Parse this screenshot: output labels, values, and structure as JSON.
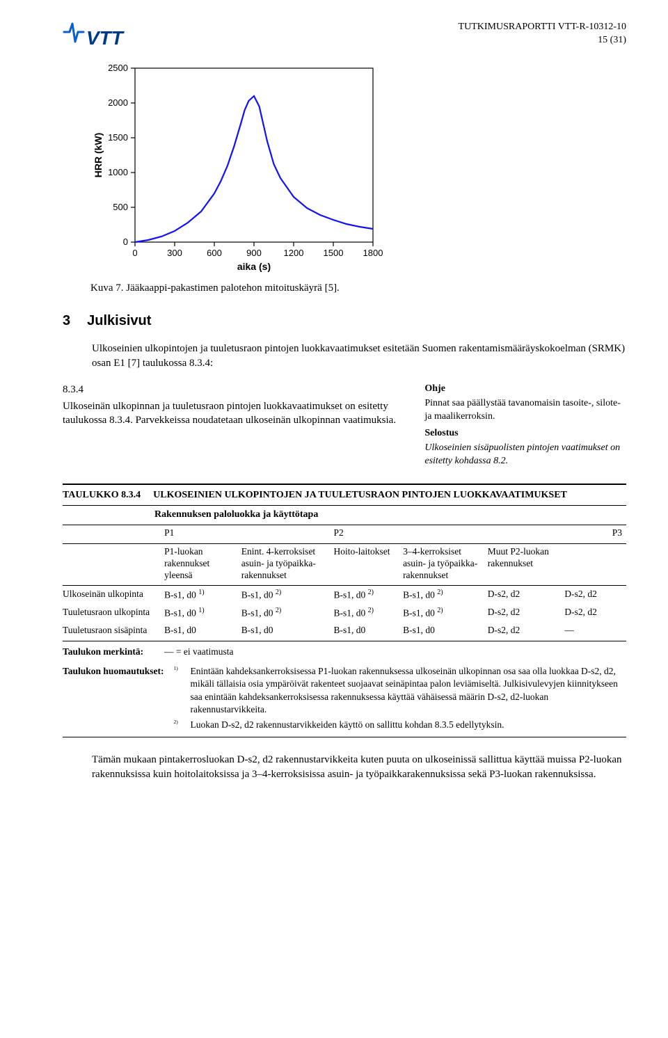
{
  "header": {
    "report_id": "TUTKIMUSRAPORTTI VTT-R-10312-10",
    "page_label": "15 (31)"
  },
  "logo": {
    "text": "VTT",
    "pulse_color": "#0a5fcf",
    "text_color": "#003a8a"
  },
  "chart": {
    "type": "line",
    "ylabel": "HRR (kW)",
    "xlabel": "aika (s)",
    "xlim": [
      0,
      1800
    ],
    "ylim": [
      0,
      2500
    ],
    "xticks": [
      0,
      300,
      600,
      900,
      1200,
      1500,
      1800
    ],
    "yticks": [
      0,
      500,
      1000,
      1500,
      2000,
      2500
    ],
    "line_color": "#1010ff",
    "axis_color": "#000000",
    "background_color": "#ffffff",
    "title_fontsize": 14,
    "tick_fontsize": 13,
    "line_width": 2.2,
    "series": {
      "x": [
        0,
        100,
        200,
        300,
        400,
        500,
        600,
        650,
        700,
        750,
        800,
        830,
        860,
        900,
        940,
        970,
        1000,
        1050,
        1100,
        1200,
        1300,
        1400,
        1500,
        1600,
        1700,
        1800
      ],
      "y": [
        0,
        30,
        80,
        160,
        280,
        440,
        700,
        880,
        1100,
        1380,
        1700,
        1900,
        2030,
        2100,
        1950,
        1700,
        1450,
        1120,
        920,
        650,
        490,
        390,
        320,
        260,
        220,
        190
      ]
    }
  },
  "caption": "Kuva 7. Jääkaappi-pakastimen palotehon mitoituskäyrä [5].",
  "section": {
    "num": "3",
    "title": "Julkisivut",
    "intro": "Ulkoseinien ulkopintojen ja tuuletusraon pintojen luokkavaatimukset esitetään Suomen rakentamismääräyskokoelman (SRMK) osan E1 [7] taulukossa 8.3.4:"
  },
  "excerpt": {
    "num": "8.3.4",
    "left_text": "Ulkoseinän ulkopinnan ja tuuletusraon pintojen luokkavaatimukset on esitetty taulukossa 8.3.4. Parvekkeissa noudatetaan ulkoseinän ulkopinnan vaatimuksia.",
    "right_ohje_label": "Ohje",
    "right_ohje_text": "Pinnat saa päällystää tavanomaisin tasoite-, silote- ja maalikerroksin.",
    "right_sel_label": "Selostus",
    "right_sel_text": "Ulkoseinien sisäpuolisten pintojen vaatimukset on esitetty kohdassa 8.2."
  },
  "table": {
    "code": "TAULUKKO 8.3.4",
    "title": "ULKOSEINIEN ULKOPINTOJEN JA TUULETUSRAON PINTOJEN LUOKKAVAATIMUKSET",
    "subhead": "Rakennuksen paloluokka ja käyttötapa",
    "col_heads_p": [
      "P1",
      "",
      "P2",
      "",
      "",
      "P3"
    ],
    "col_heads_sub": [
      "P1-luokan rakennukset yleensä",
      "Enint. 4-kerroksiset asuin- ja työpaikka-rakennukset",
      "Hoito-laitokset",
      "3–4-kerroksiset asuin- ja työpaikka-rakennukset",
      "Muut P2-luokan rakennukset",
      ""
    ],
    "rows": [
      {
        "label": "Ulkoseinän ulkopinta",
        "cells": [
          "B-s1, d0 ¹⁾",
          "B-s1, d0 ²⁾",
          "B-s1, d0 ²⁾",
          "B-s1, d0 ²⁾",
          "D-s2, d2",
          "D-s2, d2"
        ]
      },
      {
        "label": "Tuuletusraon ulkopinta",
        "cells": [
          "B-s1, d0 ¹⁾",
          "B-s1, d0 ²⁾",
          "B-s1, d0 ²⁾",
          "B-s1, d0 ²⁾",
          "D-s2, d2",
          "D-s2, d2"
        ]
      },
      {
        "label": "Tuuletusraon sisäpinta",
        "cells": [
          "B-s1, d0",
          "B-s1, d0",
          "B-s1, d0",
          "B-s1, d0",
          "D-s2, d2",
          "—"
        ]
      }
    ],
    "merk_label": "Taulukon merkintä:",
    "merk_text": "—   =   ei vaatimusta",
    "huom_label": "Taulukon huomautukset:",
    "notes": [
      {
        "sup": "1)",
        "text": "Enintään kahdeksankerroksisessa P1-luokan rakennuksessa ulkoseinän ulkopinnan osa saa olla luokkaa D-s2, d2, mikäli tällaisia osia ympäröivät rakenteet suojaavat seinäpintaa palon leviämiseltä. Julkisivulevyjen kiinnitykseen saa enintään kahdeksankerroksisessa rakennuksessa käyttää vähäisessä määrin D-s2, d2-luokan rakennustarvikkeita."
      },
      {
        "sup": "2)",
        "text": "Luokan D-s2, d2 rakennustarvikkeiden käyttö on sallittu kohdan 8.3.5 edellytyksin."
      }
    ]
  },
  "final_para": "Tämän mukaan pintakerrosluokan D-s2, d2 rakennustarvikkeita kuten puuta on ulkoseinissä sallittua käyttää muissa P2-luokan rakennuksissa kuin hoitolaitoksissa ja 3–4-kerroksisissa asuin- ja työpaikkarakennuksissa sekä P3-luokan rakennuksissa."
}
